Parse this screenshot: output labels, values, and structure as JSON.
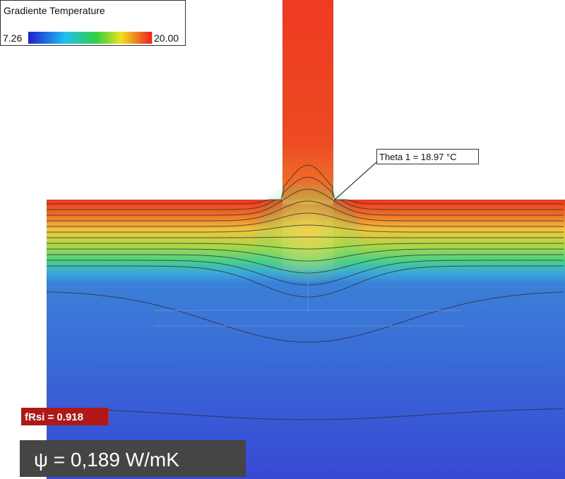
{
  "legend": {
    "title": "Gradiente Temperature",
    "min_label": "7.26",
    "max_label": "20.00"
  },
  "annotation": "Theta 1 = 18.97 °C",
  "frsi_label": "fRsi = 0.918",
  "psi_label": "ψ = 0,189 W/mK"
}
